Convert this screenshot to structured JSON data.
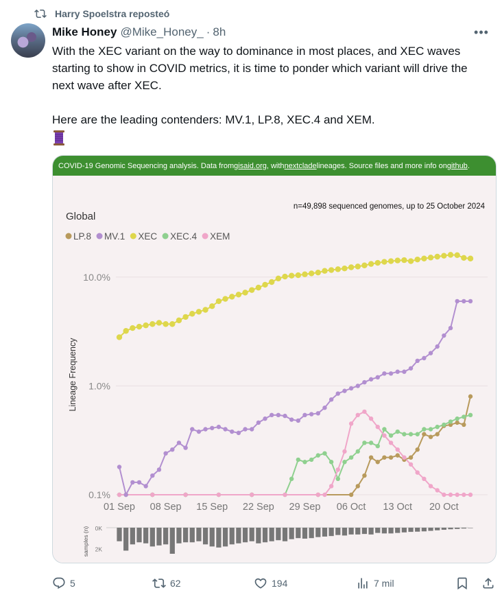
{
  "repost": {
    "text": "Harry Spoelstra reposteó",
    "icon": "repost-icon"
  },
  "tweet": {
    "author_name": "Mike Honey",
    "handle": "@Mike_Honey_",
    "separator": "·",
    "time": "8h",
    "more_icon": "more-icon",
    "paragraph1": "With the XEC variant on the way to dominance in most places, and XEC waves starting to show in COVID metrics, it is time to ponder which variant will drive the next wave after XEC.",
    "paragraph2": "Here are the leading contenders: MV.1, LP.8, XEC.4 and XEM.",
    "emoji": "spool-of-thread"
  },
  "card": {
    "banner_prefix": "COVID-19 Genomic Sequencing analysis. Data from ",
    "banner_link1": "gisaid.org",
    "banner_mid": ", with ",
    "banner_link2": "nextclade",
    "banner_mid2": " lineages. Source files and more info on ",
    "banner_link3": "github",
    "banner_suffix": "."
  },
  "chart_data": {
    "type": "line",
    "title": "Global",
    "subtitle": "n=49,898 sequenced genomes, up to 25 October 2024",
    "ylabel": "Lineage Frequency",
    "yscale": "log",
    "ylim": [
      0.001,
      0.2
    ],
    "yticks": [
      {
        "value": 0.001,
        "label": "0.1%"
      },
      {
        "value": 0.01,
        "label": "1.0%"
      },
      {
        "value": 0.1,
        "label": "10.0%"
      }
    ],
    "xticks": [
      "01 Sep",
      "08 Sep",
      "15 Sep",
      "22 Sep",
      "29 Sep",
      "06 Oct",
      "13 Oct",
      "20 Oct"
    ],
    "x_start": "2024-08-31",
    "x_end": "2024-10-25",
    "legend": [
      "LP.8",
      "MV.1",
      "XEC",
      "XEC.4",
      "XEM"
    ],
    "series": [
      {
        "name": "LP.8",
        "color": "#b89a5c",
        "x": [
          1,
          5,
          10,
          20,
          30,
          35,
          36,
          37,
          38,
          39,
          40,
          41,
          42,
          43,
          44,
          45,
          46,
          47,
          48,
          49,
          50,
          51,
          52,
          53
        ],
        "y": [
          0.001,
          0.001,
          0.001,
          0.001,
          0.001,
          0.001,
          0.0012,
          0.0015,
          0.0022,
          0.002,
          0.0022,
          0.0022,
          0.0023,
          0.0021,
          0.0022,
          0.0026,
          0.0036,
          0.0034,
          0.0036,
          0.0043,
          0.0044,
          0.0046,
          0.0044,
          0.008
        ]
      },
      {
        "name": "MV.1",
        "color": "#b28fd0",
        "x": [
          0,
          1,
          2,
          3,
          4,
          5,
          6,
          7,
          8,
          9,
          10,
          11,
          12,
          13,
          14,
          15,
          16,
          17,
          18,
          19,
          20,
          21,
          22,
          23,
          24,
          25,
          26,
          27,
          28,
          29,
          30,
          31,
          32,
          33,
          34,
          35,
          36,
          37,
          38,
          39,
          40,
          41,
          42,
          43,
          44,
          45,
          46,
          47,
          48,
          49,
          50,
          51,
          52,
          53
        ],
        "y": [
          0.0018,
          0.001,
          0.0013,
          0.0013,
          0.0012,
          0.0015,
          0.0017,
          0.0024,
          0.0026,
          0.003,
          0.0027,
          0.004,
          0.0038,
          0.004,
          0.0041,
          0.0042,
          0.004,
          0.0038,
          0.0037,
          0.004,
          0.004,
          0.0046,
          0.005,
          0.0054,
          0.0054,
          0.0053,
          0.0049,
          0.0048,
          0.0054,
          0.0055,
          0.0056,
          0.0063,
          0.0075,
          0.0085,
          0.009,
          0.0095,
          0.01,
          0.0108,
          0.0115,
          0.012,
          0.013,
          0.013,
          0.0135,
          0.0135,
          0.0145,
          0.017,
          0.018,
          0.02,
          0.023,
          0.029,
          0.034,
          0.06,
          0.06,
          0.06
        ]
      },
      {
        "name": "XEC",
        "color": "#ded74c",
        "x": [
          0,
          1,
          2,
          3,
          4,
          5,
          6,
          7,
          8,
          9,
          10,
          11,
          12,
          13,
          14,
          15,
          16,
          17,
          18,
          19,
          20,
          21,
          22,
          23,
          24,
          25,
          26,
          27,
          28,
          29,
          30,
          31,
          32,
          33,
          34,
          35,
          36,
          37,
          38,
          39,
          40,
          41,
          42,
          43,
          44,
          45,
          46,
          47,
          48,
          49,
          50,
          51,
          52,
          53
        ],
        "y": [
          0.028,
          0.032,
          0.034,
          0.035,
          0.036,
          0.037,
          0.038,
          0.037,
          0.037,
          0.04,
          0.043,
          0.046,
          0.048,
          0.05,
          0.054,
          0.06,
          0.063,
          0.066,
          0.069,
          0.072,
          0.076,
          0.08,
          0.085,
          0.09,
          0.097,
          0.101,
          0.103,
          0.104,
          0.106,
          0.108,
          0.11,
          0.114,
          0.116,
          0.118,
          0.12,
          0.123,
          0.125,
          0.128,
          0.132,
          0.135,
          0.138,
          0.14,
          0.142,
          0.143,
          0.14,
          0.145,
          0.148,
          0.151,
          0.154,
          0.157,
          0.16,
          0.159,
          0.15,
          0.148
        ]
      },
      {
        "name": "XEC.4",
        "color": "#8fd08f",
        "x": [
          0,
          5,
          10,
          15,
          20,
          25,
          26,
          27,
          28,
          29,
          30,
          31,
          32,
          33,
          34,
          35,
          36,
          37,
          38,
          39,
          40,
          41,
          42,
          43,
          44,
          45,
          46,
          47,
          48,
          49,
          50,
          51,
          52,
          53
        ],
        "y": [
          0.001,
          0.001,
          0.001,
          0.001,
          0.001,
          0.001,
          0.0014,
          0.0021,
          0.002,
          0.0021,
          0.0023,
          0.0024,
          0.002,
          0.0014,
          0.002,
          0.0022,
          0.0025,
          0.003,
          0.003,
          0.0028,
          0.004,
          0.0035,
          0.0038,
          0.0036,
          0.0036,
          0.0036,
          0.004,
          0.004,
          0.0042,
          0.0044,
          0.0047,
          0.005,
          0.0052,
          0.0054
        ]
      },
      {
        "name": "XEM",
        "color": "#f0a6c9",
        "x": [
          0,
          5,
          10,
          15,
          20,
          25,
          30,
          31,
          32,
          33,
          34,
          35,
          36,
          37,
          38,
          39,
          40,
          41,
          42,
          43,
          44,
          45,
          46,
          47,
          48,
          49,
          50,
          51,
          52,
          53
        ],
        "y": [
          0.001,
          0.001,
          0.001,
          0.001,
          0.001,
          0.001,
          0.001,
          0.001,
          0.0012,
          0.0017,
          0.0025,
          0.0045,
          0.0054,
          0.0058,
          0.005,
          0.0042,
          0.0035,
          0.003,
          0.0026,
          0.0022,
          0.0019,
          0.0016,
          0.0014,
          0.0012,
          0.0011,
          0.001,
          0.001,
          0.001,
          0.001,
          0.001
        ]
      }
    ],
    "samples_panel": {
      "ylabel": "samples (n)",
      "yticks": [
        "0K",
        "2K"
      ],
      "max": 2500,
      "values": [
        1300,
        2200,
        1600,
        1400,
        1500,
        1800,
        1700,
        1600,
        2500,
        1500,
        1400,
        1400,
        1300,
        1600,
        1800,
        1900,
        1800,
        1600,
        1500,
        1400,
        1300,
        1500,
        1400,
        1300,
        1200,
        1300,
        1100,
        1000,
        1050,
        1000,
        900,
        850,
        800,
        700,
        750,
        650,
        650,
        600,
        650,
        500,
        550,
        550,
        500,
        450,
        400,
        380,
        350,
        300,
        250,
        200,
        150,
        120,
        80,
        40
      ]
    }
  },
  "actions": {
    "reply_count": "5",
    "repost_count": "62",
    "like_count": "194",
    "views_count": "7 mil"
  }
}
